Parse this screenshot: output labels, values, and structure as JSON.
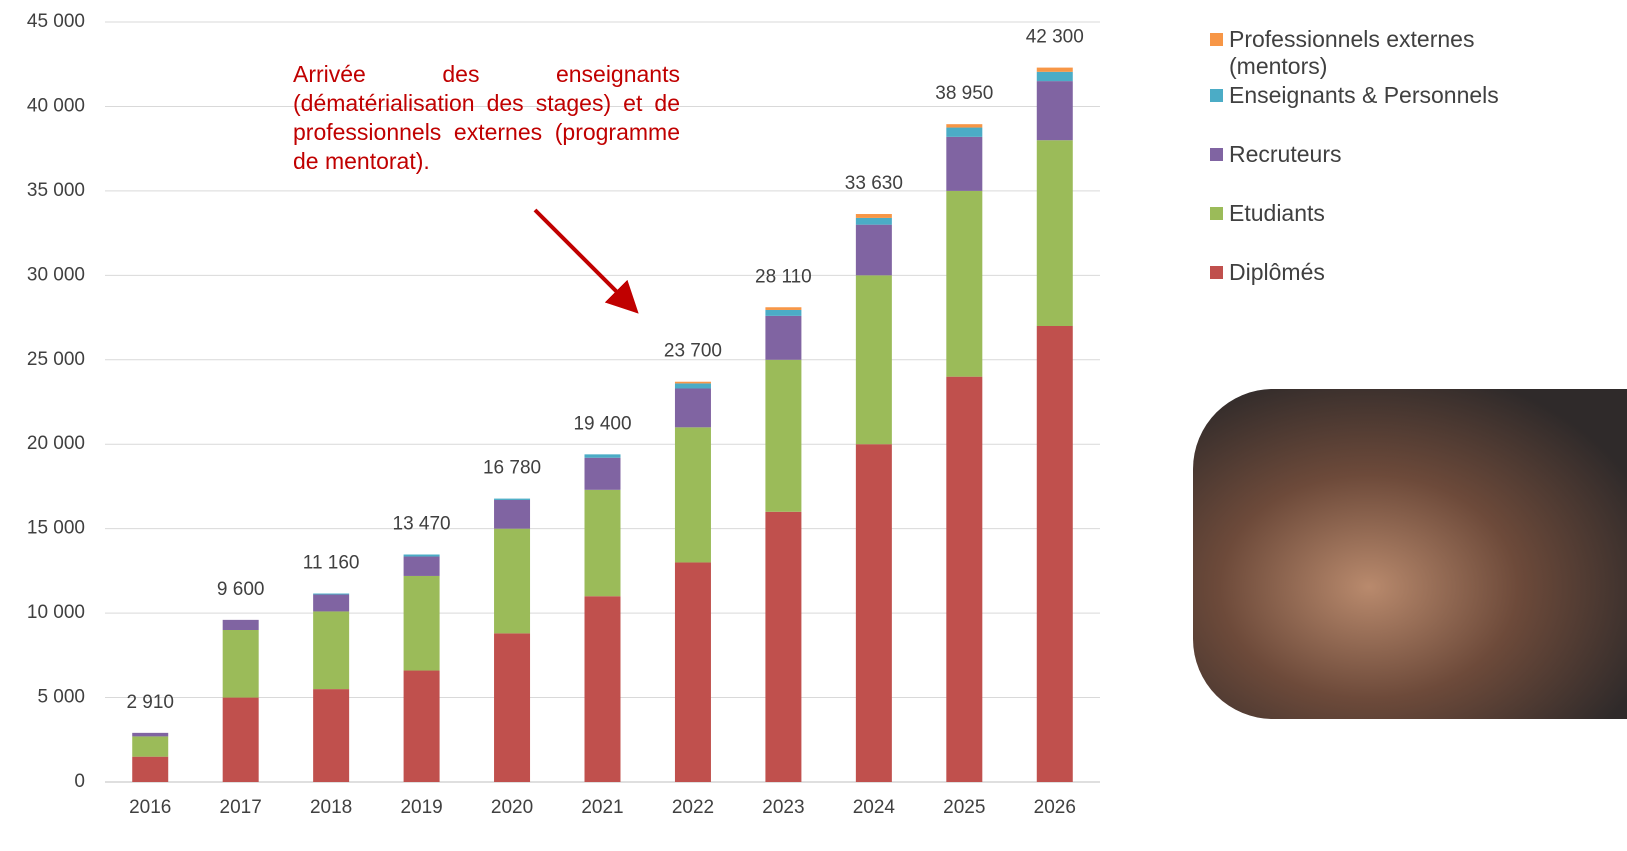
{
  "chart_data": {
    "type": "stacked-bar",
    "annotation": "Arrivée des enseignants (dématérialisation des stages) et de professionnels externes (programme de mentorat).",
    "categories": [
      "2016",
      "2017",
      "2018",
      "2019",
      "2020",
      "2021",
      "2022",
      "2023",
      "2024",
      "2025",
      "2026"
    ],
    "series": [
      {
        "name": "Diplômés",
        "color": "#c0504d",
        "values": [
          1500,
          5000,
          5500,
          6600,
          8800,
          11000,
          13000,
          16000,
          20000,
          24000,
          27000
        ]
      },
      {
        "name": "Etudiants",
        "color": "#9bbb59",
        "values": [
          1200,
          4000,
          4600,
          5600,
          6200,
          6300,
          8000,
          9000,
          10000,
          11000,
          11000
        ]
      },
      {
        "name": "Recruteurs",
        "color": "#8064a2",
        "values": [
          210,
          600,
          1000,
          1150,
          1700,
          1900,
          2300,
          2600,
          3000,
          3200,
          3500
        ]
      },
      {
        "name": "Enseignants & Personnels",
        "color": "#4bacc6",
        "values": [
          0,
          0,
          60,
          120,
          80,
          200,
          300,
          350,
          400,
          550,
          550
        ]
      },
      {
        "name": "Professionnels externes (mentors)",
        "color": "#f79646",
        "values": [
          0,
          0,
          0,
          0,
          0,
          0,
          100,
          160,
          230,
          200,
          250
        ]
      }
    ],
    "totals": [
      2910,
      9600,
      11160,
      13470,
      16780,
      19400,
      23700,
      28110,
      33630,
      38950,
      42300
    ],
    "total_labels": [
      "2 910",
      "9 600",
      "11 160",
      "13 470",
      "16 780",
      "19 400",
      "23 700",
      "28 110",
      "33 630",
      "38 950",
      "42 300"
    ],
    "ylim": [
      0,
      45000
    ],
    "yticks": [
      0,
      {
        "value": 5000,
        "label": "5 000"
      },
      {
        "value": 10000,
        "label": "10 000"
      },
      {
        "value": 15000,
        "label": "15 000"
      },
      {
        "value": 20000,
        "label": "20 000"
      },
      {
        "value": 25000,
        "label": "25 000"
      },
      {
        "value": 30000,
        "label": "30 000"
      },
      {
        "value": 35000,
        "label": "35 000"
      },
      {
        "value": 40000,
        "label": "40 000"
      },
      {
        "value": 45000,
        "label": "45 000"
      }
    ],
    "grid": true
  }
}
